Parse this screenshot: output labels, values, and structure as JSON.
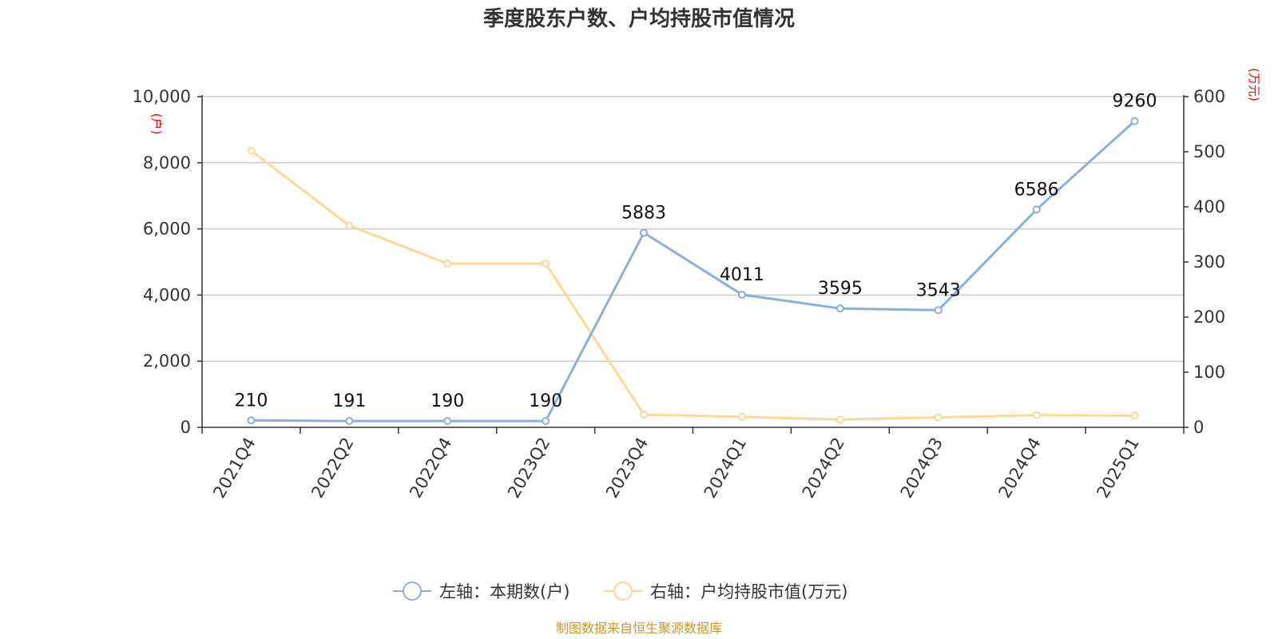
{
  "chart_data": {
    "type": "line",
    "title": "季度股东户数、户均持股市值情况",
    "categories": [
      "2021Q4",
      "2022Q2",
      "2022Q4",
      "2023Q2",
      "2023Q4",
      "2024Q1",
      "2024Q2",
      "2024Q3",
      "2024Q4",
      "2025Q1"
    ],
    "left_axis": {
      "unit": "(户)",
      "ylim": [
        0,
        10000
      ],
      "ticks": [
        0,
        2000,
        4000,
        6000,
        8000,
        10000
      ],
      "tick_labels": [
        "0",
        "2,000",
        "4,000",
        "6,000",
        "8,000",
        "10,000"
      ]
    },
    "right_axis": {
      "unit": "(万元)",
      "ylim": [
        0,
        600
      ],
      "ticks": [
        0,
        100,
        200,
        300,
        400,
        500,
        600
      ],
      "tick_labels": [
        "0",
        "100",
        "200",
        "300",
        "400",
        "500",
        "600"
      ]
    },
    "series": [
      {
        "name": "左轴：本期数(户)",
        "axis": "left",
        "color": "#8eaedb",
        "values": [
          210,
          191,
          190,
          190,
          5883,
          4011,
          3595,
          3543,
          6586,
          9260
        ],
        "data_labels": [
          "210",
          "191",
          "190",
          "190",
          "5883",
          "4011",
          "3595",
          "3543",
          "6586",
          "9260"
        ]
      },
      {
        "name": "右轴：户均持股市值(万元)",
        "axis": "right",
        "color": "#fcd999",
        "values": [
          502,
          366,
          297,
          297,
          23,
          19,
          14,
          18,
          22,
          21
        ]
      }
    ],
    "grid": true,
    "legend_position": "bottom-center"
  },
  "source_note": "制图数据来自恒生聚源数据库"
}
